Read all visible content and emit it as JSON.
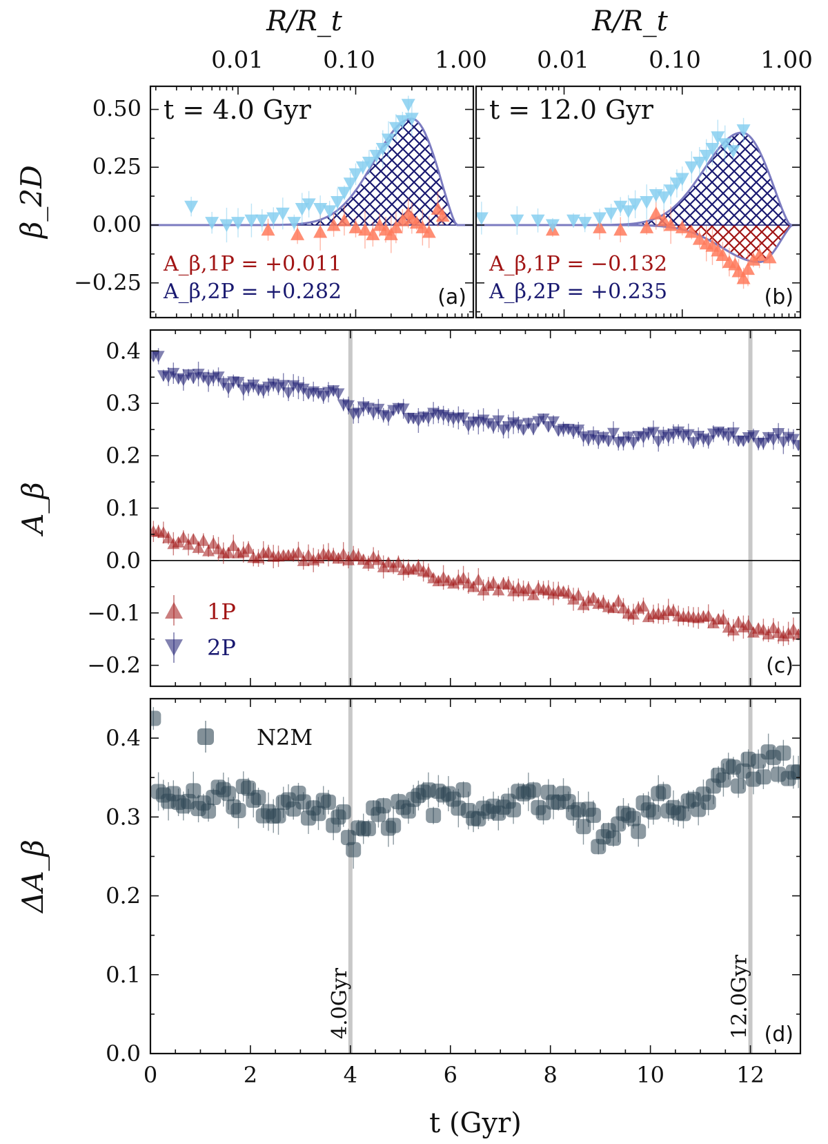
{
  "colors": {
    "pop1_light": "#ff7a5c",
    "pop2_light": "#87cff0",
    "pop1_dark": "#a11414",
    "pop2_dark": "#191970",
    "n2m": "#2e4654",
    "fit_line": "#7b7bc0",
    "vline": "#c8c8c8"
  },
  "chart_data": [
    {
      "panel": "a",
      "type": "scatter",
      "panel_label": "(a)",
      "time_label": "t = 4.0 Gyr",
      "top_axis_label": "R/R_t",
      "top_axis_ticks": [
        "0.01",
        "0.10",
        "1.00"
      ],
      "ylabel": "β_2D",
      "yticks": [
        "0.50",
        "0.25",
        "0.00",
        "−0.25"
      ],
      "ylim": [
        -0.4,
        0.6
      ],
      "xscale": "log",
      "xlim": [
        0.0018,
        1.0
      ],
      "amp_1P": "A_β,1P = +0.011",
      "amp_2P": "A_β,2P = +0.282",
      "fit_2P": {
        "peak_R": 0.3,
        "peak_beta": 0.46,
        "fall_to_zero_R": 0.72
      },
      "series": [
        {
          "name": "1P",
          "marker": "triangle-up",
          "points": [
            [
              0.018,
              -0.02
            ],
            [
              0.032,
              -0.04
            ],
            [
              0.05,
              -0.03
            ],
            [
              0.065,
              0.0
            ],
            [
              0.08,
              0.02
            ],
            [
              0.1,
              -0.01
            ],
            [
              0.12,
              -0.02
            ],
            [
              0.14,
              -0.04
            ],
            [
              0.16,
              0.0
            ],
            [
              0.18,
              -0.02
            ],
            [
              0.2,
              -0.04
            ],
            [
              0.22,
              -0.01
            ],
            [
              0.25,
              0.02
            ],
            [
              0.28,
              0.05
            ],
            [
              0.3,
              0.03
            ],
            [
              0.33,
              0.01
            ],
            [
              0.37,
              -0.01
            ],
            [
              0.42,
              -0.03
            ],
            [
              0.5,
              0.07
            ],
            [
              0.55,
              0.04
            ]
          ]
        },
        {
          "name": "2P",
          "marker": "triangle-down",
          "points": [
            [
              0.004,
              0.08
            ],
            [
              0.006,
              0.01
            ],
            [
              0.008,
              0.0
            ],
            [
              0.01,
              0.01
            ],
            [
              0.013,
              0.02
            ],
            [
              0.016,
              0.02
            ],
            [
              0.02,
              0.03
            ],
            [
              0.024,
              0.05
            ],
            [
              0.03,
              0.01
            ],
            [
              0.035,
              0.07
            ],
            [
              0.04,
              0.09
            ],
            [
              0.05,
              0.07
            ],
            [
              0.06,
              0.06
            ],
            [
              0.07,
              0.1
            ],
            [
              0.08,
              0.14
            ],
            [
              0.09,
              0.18
            ],
            [
              0.1,
              0.22
            ],
            [
              0.115,
              0.25
            ],
            [
              0.13,
              0.27
            ],
            [
              0.15,
              0.3
            ],
            [
              0.17,
              0.33
            ],
            [
              0.19,
              0.37
            ],
            [
              0.22,
              0.42
            ],
            [
              0.25,
              0.45
            ],
            [
              0.28,
              0.52
            ],
            [
              0.3,
              0.46
            ]
          ]
        }
      ]
    },
    {
      "panel": "b",
      "type": "scatter",
      "panel_label": "(b)",
      "time_label": "t = 12.0 Gyr",
      "top_axis_label": "R/R_t",
      "top_axis_ticks": [
        "0.01",
        "0.10",
        "1.00"
      ],
      "ylim": [
        -0.4,
        0.6
      ],
      "xscale": "log",
      "xlim": [
        0.0018,
        1.0
      ],
      "amp_1P": "A_β,1P = −0.132",
      "amp_2P": "A_β,2P = +0.235",
      "fit_1P": {
        "trough_R": 0.45,
        "trough_beta": -0.16,
        "fall_to_zero_R": 0.85
      },
      "fit_2P": {
        "peak_R": 0.32,
        "peak_beta": 0.4,
        "fall_to_zero_R": 0.82
      },
      "series": [
        {
          "name": "1P",
          "marker": "triangle-up",
          "points": [
            [
              0.008,
              -0.02
            ],
            [
              0.02,
              -0.01
            ],
            [
              0.03,
              -0.02
            ],
            [
              0.05,
              -0.01
            ],
            [
              0.06,
              0.05
            ],
            [
              0.07,
              0.02
            ],
            [
              0.08,
              0.0
            ],
            [
              0.1,
              -0.01
            ],
            [
              0.12,
              -0.03
            ],
            [
              0.14,
              -0.06
            ],
            [
              0.16,
              -0.08
            ],
            [
              0.18,
              -0.09
            ],
            [
              0.2,
              -0.11
            ],
            [
              0.22,
              -0.13
            ],
            [
              0.25,
              -0.16
            ],
            [
              0.28,
              -0.17
            ],
            [
              0.3,
              -0.2
            ],
            [
              0.33,
              -0.23
            ],
            [
              0.36,
              -0.19
            ],
            [
              0.4,
              -0.15
            ],
            [
              0.45,
              -0.13
            ],
            [
              0.55,
              -0.14
            ]
          ]
        },
        {
          "name": "2P",
          "marker": "triangle-down",
          "points": [
            [
              0.002,
              0.03
            ],
            [
              0.004,
              0.02
            ],
            [
              0.006,
              0.02
            ],
            [
              0.008,
              0.0
            ],
            [
              0.012,
              0.02
            ],
            [
              0.015,
              0.01
            ],
            [
              0.02,
              0.03
            ],
            [
              0.025,
              0.05
            ],
            [
              0.03,
              0.08
            ],
            [
              0.035,
              0.06
            ],
            [
              0.04,
              0.09
            ],
            [
              0.05,
              0.1
            ],
            [
              0.06,
              0.13
            ],
            [
              0.07,
              0.12
            ],
            [
              0.08,
              0.15
            ],
            [
              0.09,
              0.18
            ],
            [
              0.1,
              0.2
            ],
            [
              0.12,
              0.25
            ],
            [
              0.14,
              0.27
            ],
            [
              0.16,
              0.3
            ],
            [
              0.18,
              0.33
            ],
            [
              0.2,
              0.38
            ],
            [
              0.23,
              0.35
            ],
            [
              0.27,
              0.32
            ],
            [
              0.33,
              0.41
            ]
          ]
        }
      ]
    },
    {
      "panel": "c",
      "type": "scatter",
      "panel_label": "(c)",
      "ylabel": "A_β",
      "xlim": [
        0,
        13
      ],
      "ylim": [
        -0.24,
        0.44
      ],
      "yticks": [
        "0.4",
        "0.3",
        "0.2",
        "0.1",
        "0.0",
        "−0.1",
        "−0.2"
      ],
      "legend": [
        {
          "name": "1P",
          "marker": "triangle-up"
        },
        {
          "name": "2P",
          "marker": "triangle-down"
        }
      ],
      "legend_position": "bottom-left",
      "vlines": [
        4.0,
        12.0
      ],
      "hline": 0.0,
      "series": [
        {
          "name": "1P",
          "trend": [
            [
              0.0,
              0.05
            ],
            [
              1.0,
              0.03
            ],
            [
              2.0,
              0.015
            ],
            [
              3.0,
              0.005
            ],
            [
              4.0,
              0.005
            ],
            [
              5.0,
              -0.01
            ],
            [
              6.0,
              -0.04
            ],
            [
              7.0,
              -0.05
            ],
            [
              8.0,
              -0.065
            ],
            [
              9.0,
              -0.08
            ],
            [
              10.0,
              -0.1
            ],
            [
              11.0,
              -0.11
            ],
            [
              12.0,
              -0.13
            ],
            [
              13.0,
              -0.14
            ]
          ]
        },
        {
          "name": "2P",
          "trend": [
            [
              0.0,
              0.36
            ],
            [
              1.0,
              0.345
            ],
            [
              2.0,
              0.335
            ],
            [
              3.0,
              0.33
            ],
            [
              3.6,
              0.32
            ],
            [
              4.0,
              0.29
            ],
            [
              5.0,
              0.28
            ],
            [
              6.0,
              0.27
            ],
            [
              7.0,
              0.26
            ],
            [
              8.0,
              0.26
            ],
            [
              9.0,
              0.235
            ],
            [
              10.0,
              0.235
            ],
            [
              11.0,
              0.235
            ],
            [
              12.0,
              0.235
            ],
            [
              13.0,
              0.23
            ]
          ]
        }
      ]
    },
    {
      "panel": "d",
      "type": "scatter",
      "panel_label": "(d)",
      "xlabel": "t (Gyr)",
      "ylabel": "ΔA_β",
      "xlim": [
        0,
        13
      ],
      "ylim": [
        0.0,
        0.45
      ],
      "xticks": [
        "0",
        "2",
        "4",
        "6",
        "8",
        "10",
        "12"
      ],
      "yticks": [
        "0.4",
        "0.3",
        "0.2",
        "0.1",
        "0.0"
      ],
      "legend": [
        {
          "name": "N2M",
          "marker": "circle"
        }
      ],
      "legend_position": "top-left",
      "vlines": [
        4.0,
        12.0
      ],
      "vline_labels": [
        "4.0Gyr",
        "12.0Gyr"
      ],
      "series": [
        {
          "name": "N2M",
          "trend": [
            [
              0.0,
              0.315
            ],
            [
              0.5,
              0.32
            ],
            [
              1.0,
              0.32
            ],
            [
              2.0,
              0.32
            ],
            [
              3.0,
              0.318
            ],
            [
              3.6,
              0.31
            ],
            [
              4.0,
              0.275
            ],
            [
              4.5,
              0.3
            ],
            [
              5.0,
              0.305
            ],
            [
              6.0,
              0.325
            ],
            [
              7.0,
              0.31
            ],
            [
              8.0,
              0.32
            ],
            [
              8.6,
              0.31
            ],
            [
              9.0,
              0.27
            ],
            [
              9.5,
              0.29
            ],
            [
              10.0,
              0.31
            ],
            [
              11.0,
              0.33
            ],
            [
              12.0,
              0.36
            ],
            [
              13.0,
              0.37
            ]
          ]
        }
      ]
    }
  ]
}
